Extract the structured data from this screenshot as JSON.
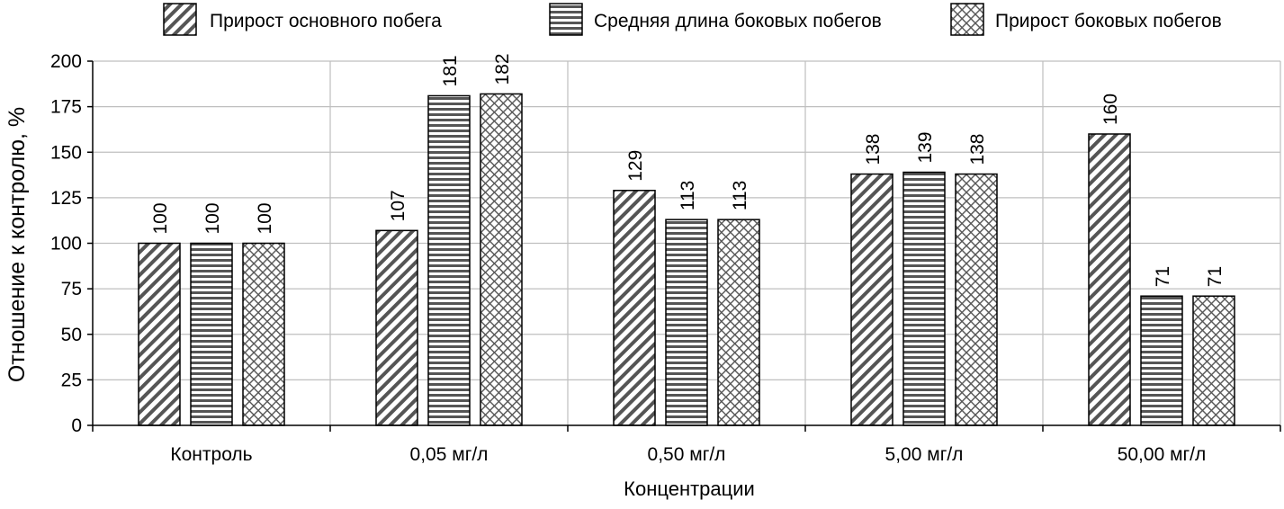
{
  "chart_data": {
    "type": "bar",
    "categories": [
      "Контроль",
      "0,05 мг/л",
      "0,50 мг/л",
      "5,00 мг/л",
      "50,00 мг/л"
    ],
    "series": [
      {
        "name": "Прирост основного побега",
        "pattern": "diagonal-hatch",
        "values": [
          100,
          107,
          129,
          138,
          160
        ]
      },
      {
        "name": "Средняя длина боковых побегов",
        "pattern": "horizontal-lines",
        "values": [
          100,
          181,
          113,
          139,
          71
        ]
      },
      {
        "name": "Прирост боковых побегов",
        "pattern": "cross-hatch",
        "values": [
          100,
          182,
          113,
          138,
          71
        ]
      }
    ],
    "xlabel": "Концентрации",
    "ylabel": "Отношение к контролю, %",
    "ylim": [
      0,
      200
    ],
    "yticks": [
      0,
      25,
      50,
      75,
      100,
      125,
      150,
      175,
      200
    ],
    "grid": true,
    "legend": "top-right",
    "colors": {
      "bar_fill": "#ffffff",
      "bar_stroke": "#000000",
      "hatch": "#555555",
      "grid": "#bfbfbf",
      "axis": "#000000"
    }
  }
}
